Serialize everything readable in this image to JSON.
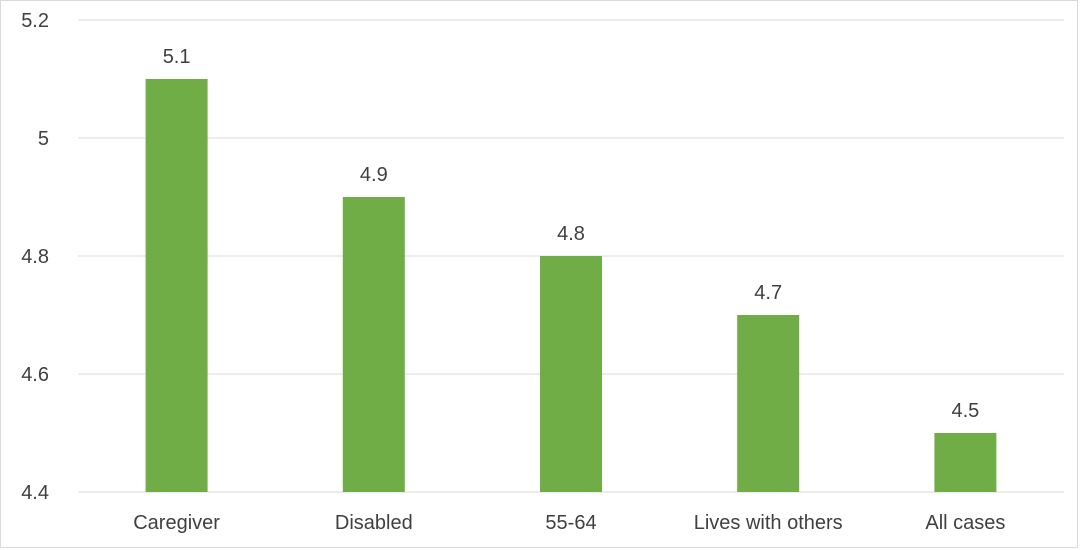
{
  "chart_data": {
    "type": "bar",
    "categories": [
      "Caregiver",
      "Disabled",
      "55-64",
      "Lives with others",
      "All cases"
    ],
    "values": [
      5.1,
      4.9,
      4.8,
      4.7,
      4.5
    ],
    "data_labels": [
      "5.1",
      "4.9",
      "4.8",
      "4.7",
      "4.5"
    ],
    "title": "",
    "xlabel": "",
    "ylabel": "",
    "ylim": [
      4.4,
      5.2
    ],
    "yticks": [
      4.4,
      4.6,
      4.8,
      5.0,
      5.2
    ],
    "ytick_labels": [
      "4.4",
      "4.6",
      "4.8",
      "5",
      "5.2"
    ],
    "grid": true,
    "legend": "none",
    "bar_color": "#70ad47",
    "grid_color": "#d9d9d9",
    "text_color": "#404040"
  }
}
